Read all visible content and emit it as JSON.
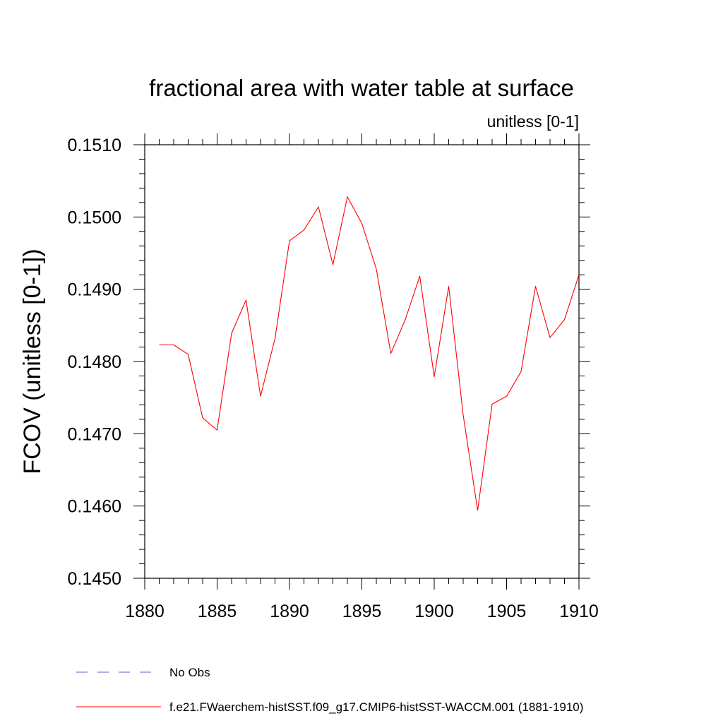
{
  "chart_data": {
    "type": "line",
    "title": "fractional area with water table at surface",
    "units_label": "unitless [0-1]",
    "ylabel": "FCOV  (unitless [0-1])",
    "xlabel": "",
    "xlim": [
      1880,
      1910
    ],
    "ylim": [
      0.145,
      0.151
    ],
    "x_ticks": [
      1880,
      1885,
      1890,
      1895,
      1900,
      1905,
      1910
    ],
    "x_tick_labels": [
      "1880",
      "1885",
      "1890",
      "1895",
      "1900",
      "1905",
      "1910"
    ],
    "y_ticks": [
      0.145,
      0.146,
      0.147,
      0.148,
      0.149,
      0.15,
      0.151
    ],
    "y_tick_labels": [
      "0.1450",
      "0.1460",
      "0.1470",
      "0.1480",
      "0.1490",
      "0.1500",
      "0.1510"
    ],
    "grid": false,
    "legend_position": "bottom",
    "series": [
      {
        "name": "f.e21.FWaerchem-histSST.f09_g17.CMIP6-histSST-WACCM.001 (1881-1910)",
        "color": "#ff0000",
        "style": "solid",
        "x": [
          1881,
          1882,
          1883,
          1884,
          1885,
          1886,
          1887,
          1888,
          1889,
          1890,
          1891,
          1892,
          1893,
          1894,
          1895,
          1896,
          1897,
          1898,
          1899,
          1900,
          1901,
          1902,
          1903,
          1904,
          1905,
          1906,
          1907,
          1908,
          1909,
          1910
        ],
        "y": [
          0.14823,
          0.14823,
          0.1481,
          0.14722,
          0.14705,
          0.14839,
          0.14885,
          0.14752,
          0.14832,
          0.14967,
          0.14982,
          0.15014,
          0.14934,
          0.15028,
          0.14991,
          0.14928,
          0.14811,
          0.14858,
          0.14918,
          0.14779,
          0.14904,
          0.14726,
          0.14594,
          0.14741,
          0.14752,
          0.14786,
          0.14904,
          0.14833,
          0.14858,
          0.1492
        ]
      }
    ],
    "legend": [
      {
        "label": "No Obs",
        "color": "#6a5acd",
        "style": "dashed"
      },
      {
        "label": "f.e21.FWaerchem-histSST.f09_g17.CMIP6-histSST-WACCM.001 (1881-1910)",
        "color": "#ff0000",
        "style": "solid"
      }
    ]
  }
}
